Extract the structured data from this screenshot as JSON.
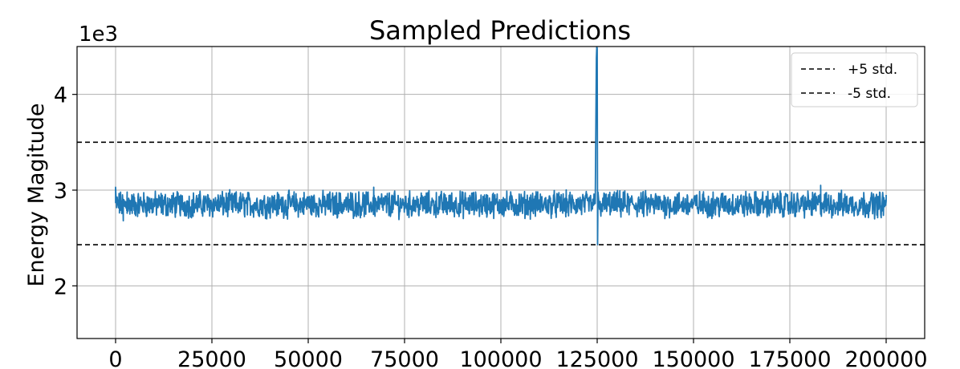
{
  "chart_data": {
    "type": "line",
    "title": "Sampled Predictions",
    "xlabel": "",
    "ylabel": "Energy Magitude",
    "offset_label": "1e3",
    "xlim": [
      -10000,
      210000
    ],
    "ylim": [
      1.45,
      4.5
    ],
    "x_ticks": [
      0,
      25000,
      50000,
      75000,
      100000,
      125000,
      150000,
      175000,
      200000
    ],
    "x_tick_labels": [
      "0",
      "25000",
      "50000",
      "75000",
      "100000",
      "125000",
      "150000",
      "175000",
      "200000"
    ],
    "y_ticks": [
      2,
      3,
      4
    ],
    "y_tick_labels": [
      "2",
      "3",
      "4"
    ],
    "grid": true,
    "legend_position": "top-right",
    "colors": {
      "series": "#1f77b4",
      "threshold": "#000000",
      "grid": "#b0b0b0"
    },
    "series": [
      {
        "style": "solid",
        "x_start": 0,
        "x_end": 200000,
        "n_points": 2000,
        "baseline": 2.85,
        "noise_range": [
          2.65,
          3.07
        ],
        "x": [
          0,
          1000,
          2000,
          3000,
          5000,
          10000,
          25000,
          50000,
          67000,
          75000,
          100000,
          124500,
          124800,
          124900,
          125000,
          125100,
          125200,
          125600,
          150000,
          175000,
          183000,
          200000
        ],
        "y": [
          3.03,
          2.83,
          2.68,
          2.98,
          2.75,
          2.9,
          2.78,
          2.93,
          3.03,
          2.82,
          2.87,
          2.86,
          4.38,
          4.52,
          4.48,
          2.43,
          2.98,
          2.8,
          2.85,
          2.88,
          3.05,
          2.95
        ]
      }
    ],
    "thresholds": [
      {
        "name": "+5 std.",
        "value": 3.5,
        "style": "dashed"
      },
      {
        "name": "-5 std.",
        "value": 2.43,
        "style": "dashed"
      }
    ]
  }
}
